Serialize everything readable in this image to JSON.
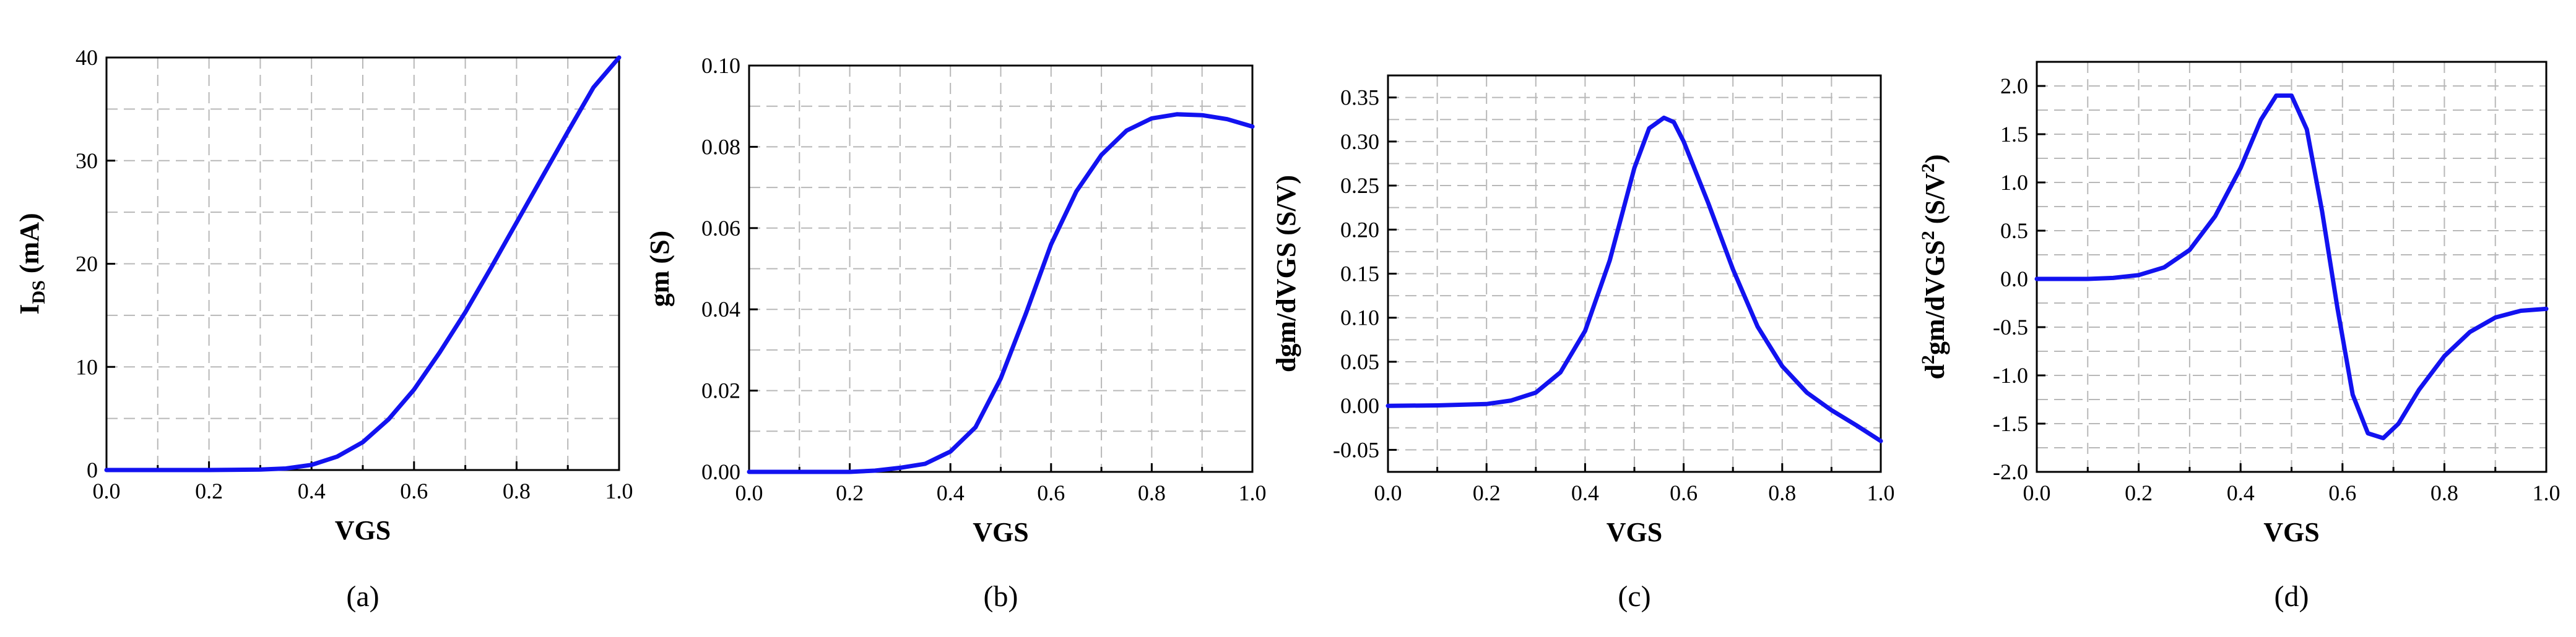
{
  "chart_data": [
    {
      "type": "line",
      "caption": "(a)",
      "xlabel": "VGS",
      "ylabel_main": "I",
      "ylabel_sub": "DS",
      "ylabel_tail": " (mA)",
      "xlim": [
        0,
        1.0
      ],
      "ylim": [
        0,
        40
      ],
      "xticks": [
        "0.0",
        "0.2",
        "0.4",
        "0.6",
        "0.8",
        "1.0"
      ],
      "yticks": [
        "0",
        "10",
        "20",
        "30",
        "40"
      ],
      "x": [
        0.0,
        0.1,
        0.2,
        0.3,
        0.35,
        0.4,
        0.45,
        0.5,
        0.55,
        0.6,
        0.65,
        0.7,
        0.75,
        0.8,
        0.85,
        0.9,
        0.95,
        1.0
      ],
      "y": [
        0.0,
        0.0,
        0.0,
        0.05,
        0.15,
        0.5,
        1.3,
        2.7,
        4.9,
        7.8,
        11.4,
        15.3,
        19.6,
        24.0,
        28.4,
        32.8,
        37.1,
        40.0
      ]
    },
    {
      "type": "line",
      "caption": "(b)",
      "xlabel": "VGS",
      "ylabel_main": "gm (S)",
      "ylabel_sub": "",
      "ylabel_tail": "",
      "xlim": [
        0,
        1.0
      ],
      "ylim": [
        0,
        0.1
      ],
      "xticks": [
        "0.0",
        "0.2",
        "0.4",
        "0.6",
        "0.8",
        "1.0"
      ],
      "yticks": [
        "0.00",
        "0.02",
        "0.04",
        "0.06",
        "0.08",
        "0.10"
      ],
      "x": [
        0.0,
        0.1,
        0.2,
        0.25,
        0.3,
        0.35,
        0.4,
        0.45,
        0.5,
        0.55,
        0.6,
        0.65,
        0.7,
        0.75,
        0.8,
        0.85,
        0.9,
        0.95,
        1.0
      ],
      "y": [
        0.0,
        0.0,
        0.0,
        0.0003,
        0.001,
        0.002,
        0.005,
        0.011,
        0.023,
        0.039,
        0.056,
        0.069,
        0.078,
        0.084,
        0.087,
        0.088,
        0.0878,
        0.0868,
        0.085
      ]
    },
    {
      "type": "line",
      "caption": "(c)",
      "xlabel": "VGS",
      "ylabel_main": "dgm/dVGS (S/V)",
      "ylabel_sub": "",
      "ylabel_tail": "",
      "xlim": [
        0,
        1.0
      ],
      "ylim": [
        -0.075,
        0.375
      ],
      "xticks": [
        "0.0",
        "0.2",
        "0.4",
        "0.6",
        "0.8",
        "1.0"
      ],
      "yticks": [
        "-0.05",
        "0.00",
        "0.05",
        "0.10",
        "0.15",
        "0.20",
        "0.25",
        "0.30",
        "0.35"
      ],
      "x": [
        0.0,
        0.1,
        0.2,
        0.25,
        0.3,
        0.35,
        0.4,
        0.45,
        0.5,
        0.53,
        0.56,
        0.58,
        0.6,
        0.65,
        0.7,
        0.75,
        0.8,
        0.85,
        0.9,
        0.95,
        1.0
      ],
      "y": [
        0.0,
        0.0005,
        0.002,
        0.006,
        0.015,
        0.038,
        0.085,
        0.165,
        0.27,
        0.315,
        0.327,
        0.322,
        0.3,
        0.23,
        0.155,
        0.09,
        0.045,
        0.015,
        -0.005,
        -0.022,
        -0.04
      ]
    },
    {
      "type": "line",
      "caption": "(d)",
      "xlabel": "VGS",
      "ylabel_main": "d",
      "ylabel_sup1": "2",
      "ylabel_mid": "gm/dVGS",
      "ylabel_sup2": "2",
      "ylabel_mid2": " (S/V",
      "ylabel_sup3": "2",
      "ylabel_end": ")",
      "xlim": [
        0,
        1.0
      ],
      "ylim": [
        -2.0,
        2.25
      ],
      "xticks": [
        "0.0",
        "0.2",
        "0.4",
        "0.6",
        "0.8",
        "1.0"
      ],
      "yticks": [
        "-2.0",
        "-1.5",
        "-1.0",
        "-0.5",
        "0.0",
        "0.5",
        "1.0",
        "1.5",
        "2.0"
      ],
      "x": [
        0.0,
        0.1,
        0.15,
        0.2,
        0.25,
        0.3,
        0.35,
        0.4,
        0.44,
        0.47,
        0.5,
        0.53,
        0.56,
        0.59,
        0.62,
        0.65,
        0.68,
        0.71,
        0.75,
        0.8,
        0.85,
        0.9,
        0.95,
        1.0
      ],
      "y": [
        0.0,
        0.0,
        0.01,
        0.04,
        0.12,
        0.3,
        0.65,
        1.15,
        1.65,
        1.9,
        1.9,
        1.55,
        0.7,
        -0.3,
        -1.2,
        -1.6,
        -1.65,
        -1.5,
        -1.15,
        -0.8,
        -0.55,
        -0.4,
        -0.33,
        -0.31
      ]
    }
  ]
}
